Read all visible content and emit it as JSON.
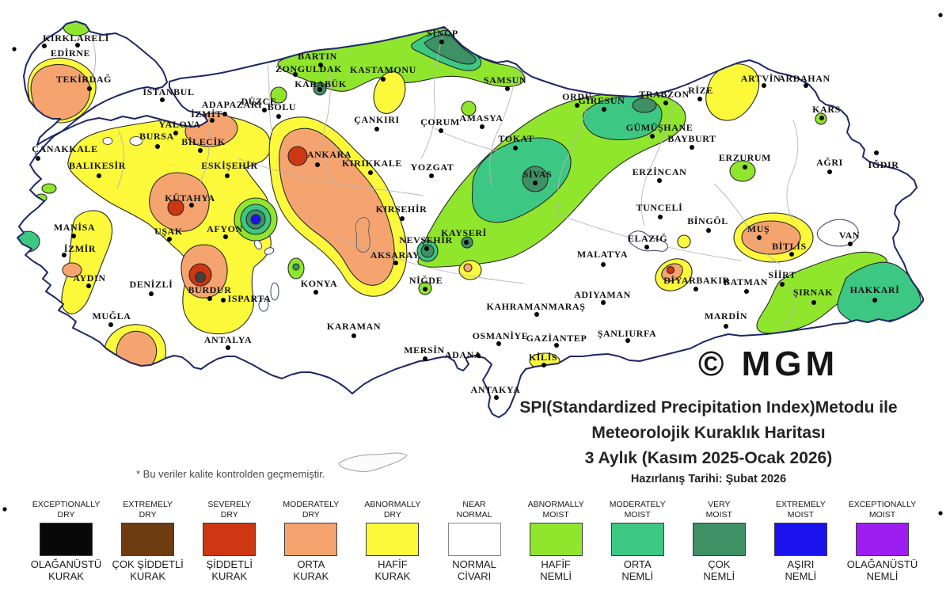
{
  "title": {
    "line1": "SPI(Standardized Precipitation Index)Metodu ile",
    "line2": "Meteorolojik Kuraklık Haritası",
    "line3": "3 Aylık (Kasım 2025-Ocak 2026)",
    "date_line": "Hazırlanış Tarihi: Şubat 2026"
  },
  "footnote": "* Bu veriler kalite kontrolden geçmemiştir.",
  "watermark": "© MGM",
  "palette": {
    "exceptionally_dry": "#080808",
    "extremely_dry": "#6f3b11",
    "severely_dry": "#cd3712",
    "moderately_dry": "#f5a46f",
    "abnormally_dry": "#fbf93a",
    "near_normal": "#ffffff",
    "abnormally_moist": "#8fe62c",
    "moderately_moist": "#3cc882",
    "very_moist": "#3e9065",
    "extremely_moist": "#1b13ee",
    "exceptionally_moist": "#9d1ef0",
    "dark_core": "#46403a"
  },
  "legend": [
    {
      "key": "exceptionally_dry",
      "en": [
        "EXCEPTIONALLY",
        "DRY"
      ],
      "tr": [
        "OLAĞANÜSTÜ",
        "KURAK"
      ],
      "color": "#080808"
    },
    {
      "key": "extremely_dry",
      "en": [
        "EXTREMELY",
        "DRY"
      ],
      "tr": [
        "ÇOK ŞİDDETLİ",
        "KURAK"
      ],
      "color": "#6f3b11"
    },
    {
      "key": "severely_dry",
      "en": [
        "SEVERELY",
        "DRY"
      ],
      "tr": [
        "ŞİDDETLİ",
        "KURAK"
      ],
      "color": "#cd3712"
    },
    {
      "key": "moderately_dry",
      "en": [
        "MODERATELY",
        "DRY"
      ],
      "tr": [
        "ORTA",
        "KURAK"
      ],
      "color": "#f5a46f"
    },
    {
      "key": "abnormally_dry",
      "en": [
        "ABNORMALLY",
        "DRY"
      ],
      "tr": [
        "HAFİF",
        "KURAK"
      ],
      "color": "#fbf93a"
    },
    {
      "key": "near_normal",
      "en": [
        "NEAR",
        "NORMAL"
      ],
      "tr": [
        "NORMAL",
        "CİVARI"
      ],
      "color": "#ffffff"
    },
    {
      "key": "abnormally_moist",
      "en": [
        "ABNORMALLY",
        "MOIST"
      ],
      "tr": [
        "HAFİF",
        "NEMLİ"
      ],
      "color": "#8fe62c"
    },
    {
      "key": "moderately_moist",
      "en": [
        "MODERATELY",
        "MOIST"
      ],
      "tr": [
        "ORTA",
        "NEMLİ"
      ],
      "color": "#3cc882"
    },
    {
      "key": "very_moist",
      "en": [
        "VERY",
        "MOIST"
      ],
      "tr": [
        "ÇOK",
        "NEMLİ"
      ],
      "color": "#3e9065"
    },
    {
      "key": "extremely_moist",
      "en": [
        "EXTREMELY",
        "MOIST"
      ],
      "tr": [
        "AŞIRI",
        "NEMLİ"
      ],
      "color": "#1b13ee"
    },
    {
      "key": "exceptionally_moist",
      "en": [
        "EXCEPTIONALLY",
        "MOIST"
      ],
      "tr": [
        "OLAĞANÜSTÜ",
        "NEMLİ"
      ],
      "color": "#9d1ef0"
    }
  ],
  "cities": [
    {
      "name": "KIRKLARELİ",
      "label": [
        96,
        48
      ],
      "dot": [
        98,
        57
      ]
    },
    {
      "name": "EDİRNE",
      "label": [
        89,
        67
      ],
      "dot": [
        56,
        58
      ]
    },
    {
      "name": "TEKİRDAĞ",
      "label": [
        106,
        100
      ],
      "dot": [
        113,
        112
      ]
    },
    {
      "name": "İSTANBUL",
      "label": [
        213,
        116
      ],
      "dot": [
        205,
        126
      ]
    },
    {
      "name": "ÇANAKKALE",
      "label": [
        82,
        188
      ],
      "dot": [
        48,
        200
      ]
    },
    {
      "name": "YALOVA",
      "label": [
        227,
        157
      ],
      "dot": [
        222,
        168
      ]
    },
    {
      "name": "İZMİT",
      "label": [
        261,
        144
      ],
      "dot": [
        268,
        152
      ]
    },
    {
      "name": "ADAPAZARI",
      "label": [
        293,
        132
      ],
      "dot": [
        284,
        144
      ]
    },
    {
      "name": "BURSA",
      "label": [
        198,
        172
      ],
      "dot": [
        199,
        185
      ]
    },
    {
      "name": "BİLECİK",
      "label": [
        257,
        179
      ],
      "dot": [
        253,
        190
      ]
    },
    {
      "name": "BALIKESİR",
      "label": [
        123,
        209
      ],
      "dot": [
        125,
        222
      ]
    },
    {
      "name": "ESKİŞEHİR",
      "label": [
        290,
        209
      ],
      "dot": [
        287,
        222
      ]
    },
    {
      "name": "BOLU",
      "label": [
        356,
        135
      ],
      "dot": [
        352,
        147
      ]
    },
    {
      "name": "DÜZCE",
      "label": [
        327,
        128
      ],
      "dot": [
        334,
        139
      ]
    },
    {
      "name": "ZONGULDAK",
      "label": [
        390,
        87
      ],
      "dot": [
        373,
        94
      ]
    },
    {
      "name": "BARTIN",
      "label": [
        401,
        71
      ],
      "dot": [
        405,
        82
      ]
    },
    {
      "name": "KARABÜK",
      "label": [
        405,
        106
      ],
      "dot": [
        404,
        113
      ]
    },
    {
      "name": "KASTAMONU",
      "label": [
        484,
        88
      ],
      "dot": [
        484,
        100
      ]
    },
    {
      "name": "SİNOP",
      "label": [
        559,
        42
      ],
      "dot": [
        558,
        53
      ]
    },
    {
      "name": "SAMSUN",
      "label": [
        638,
        101
      ],
      "dot": [
        641,
        112
      ]
    },
    {
      "name": "ÇANKIRI",
      "label": [
        476,
        151
      ],
      "dot": [
        476,
        163
      ]
    },
    {
      "name": "ÇORUM",
      "label": [
        556,
        154
      ],
      "dot": [
        557,
        165
      ]
    },
    {
      "name": "AMASYA",
      "label": [
        608,
        149
      ],
      "dot": [
        609,
        160
      ]
    },
    {
      "name": "TOKAT",
      "label": [
        652,
        175
      ],
      "dot": [
        651,
        187
      ]
    },
    {
      "name": "ORDU",
      "label": [
        729,
        122
      ],
      "dot": [
        729,
        133
      ]
    },
    {
      "name": "GİRESUN",
      "label": [
        760,
        127
      ],
      "dot": [
        763,
        138
      ]
    },
    {
      "name": "TRABZON",
      "label": [
        839,
        119
      ],
      "dot": [
        841,
        130
      ]
    },
    {
      "name": "RİZE",
      "label": [
        885,
        114
      ],
      "dot": [
        884,
        125
      ]
    },
    {
      "name": "ARTVİN",
      "label": [
        961,
        99
      ],
      "dot": [
        965,
        108
      ]
    },
    {
      "name": "ARDAHAN",
      "label": [
        1016,
        99
      ],
      "dot": [
        1018,
        108
      ]
    },
    {
      "name": "KARS",
      "label": [
        1044,
        138
      ],
      "dot": [
        1038,
        149
      ]
    },
    {
      "name": "GÜMÜŞHANE",
      "label": [
        833,
        161
      ],
      "dot": [
        824,
        172
      ]
    },
    {
      "name": "BAYBURT",
      "label": [
        874,
        175
      ],
      "dot": [
        874,
        186
      ]
    },
    {
      "name": "ERZİNCAN",
      "label": [
        833,
        217
      ],
      "dot": [
        833,
        228
      ]
    },
    {
      "name": "ERZURUM",
      "label": [
        941,
        199
      ],
      "dot": [
        941,
        211
      ]
    },
    {
      "name": "AĞRI",
      "label": [
        1048,
        205
      ],
      "dot": [
        1048,
        217
      ]
    },
    {
      "name": "IĞDIR",
      "label": [
        1116,
        208
      ],
      "dot": [
        1107,
        193
      ]
    },
    {
      "name": "ANKARA",
      "label": [
        416,
        195
      ],
      "dot": [
        401,
        208
      ]
    },
    {
      "name": "KIRIKKALE",
      "label": [
        470,
        206
      ],
      "dot": [
        468,
        218
      ]
    },
    {
      "name": "YOZGAT",
      "label": [
        546,
        211
      ],
      "dot": [
        545,
        222
      ]
    },
    {
      "name": "SİVAS",
      "label": [
        679,
        220
      ],
      "dot": [
        676,
        231
      ]
    },
    {
      "name": "KIRŞEHİR",
      "label": [
        507,
        264
      ],
      "dot": [
        508,
        276
      ]
    },
    {
      "name": "NEVŞEHİR",
      "label": [
        538,
        303
      ],
      "dot": [
        539,
        314
      ]
    },
    {
      "name": "KAYSERİ",
      "label": [
        586,
        294
      ],
      "dot": [
        589,
        306
      ]
    },
    {
      "name": "AKSARAY",
      "label": [
        499,
        322
      ],
      "dot": [
        500,
        332
      ]
    },
    {
      "name": "NİĞDE",
      "label": [
        538,
        354
      ],
      "dot": [
        537,
        365
      ]
    },
    {
      "name": "KONYA",
      "label": [
        403,
        358
      ],
      "dot": [
        399,
        369
      ]
    },
    {
      "name": "KARAMAN",
      "label": [
        447,
        412
      ],
      "dot": [
        447,
        424
      ]
    },
    {
      "name": "KÜTAHYA",
      "label": [
        240,
        250
      ],
      "dot": [
        242,
        259
      ]
    },
    {
      "name": "AFYON",
      "label": [
        284,
        289
      ],
      "dot": [
        285,
        299
      ]
    },
    {
      "name": "UŞAK",
      "label": [
        213,
        292
      ],
      "dot": [
        214,
        302
      ]
    },
    {
      "name": "MANİSA",
      "label": [
        94,
        287
      ],
      "dot": [
        93,
        298
      ]
    },
    {
      "name": "İZMİR",
      "label": [
        101,
        314
      ],
      "dot": [
        81,
        322
      ]
    },
    {
      "name": "AYDIN",
      "label": [
        113,
        351
      ],
      "dot": [
        112,
        361
      ]
    },
    {
      "name": "DENİZLİ",
      "label": [
        191,
        359
      ],
      "dot": [
        191,
        371
      ]
    },
    {
      "name": "BURDUR",
      "label": [
        265,
        366
      ],
      "dot": [
        265,
        377
      ]
    },
    {
      "name": "ISPARTA",
      "label": [
        315,
        377
      ],
      "dot": [
        282,
        379
      ]
    },
    {
      "name": "MUĞLA",
      "label": [
        141,
        399
      ],
      "dot": [
        140,
        410
      ]
    },
    {
      "name": "ANTALYA",
      "label": [
        288,
        429
      ],
      "dot": [
        288,
        439
      ]
    },
    {
      "name": "MERSİN",
      "label": [
        536,
        442
      ],
      "dot": [
        537,
        453
      ]
    },
    {
      "name": "ADANA",
      "label": [
        585,
        448
      ],
      "dot": [
        604,
        449
      ]
    },
    {
      "name": "OSMANİYE",
      "label": [
        632,
        424
      ],
      "dot": [
        630,
        434
      ]
    },
    {
      "name": "GAZİANTEP",
      "label": [
        703,
        427
      ],
      "dot": [
        703,
        436
      ]
    },
    {
      "name": "KİLİS",
      "label": [
        686,
        451
      ],
      "dot": [
        687,
        461
      ]
    },
    {
      "name": "KAHRAMANMARAŞ",
      "label": [
        677,
        387
      ],
      "dot": [
        678,
        397
      ]
    },
    {
      "name": "ŞANLIURFA",
      "label": [
        792,
        421
      ],
      "dot": [
        793,
        430
      ]
    },
    {
      "name": "ADIYAMAN",
      "label": [
        761,
        372
      ],
      "dot": [
        762,
        382
      ]
    },
    {
      "name": "MALATYA",
      "label": [
        761,
        321
      ],
      "dot": [
        762,
        334
      ]
    },
    {
      "name": "ANTAKYA",
      "label": [
        626,
        492
      ],
      "dot": [
        627,
        502
      ]
    },
    {
      "name": "TUNCELİ",
      "label": [
        833,
        262
      ],
      "dot": [
        834,
        274
      ]
    },
    {
      "name": "BİNGÖL",
      "label": [
        894,
        279
      ],
      "dot": [
        895,
        291
      ]
    },
    {
      "name": "ELAZIĞ",
      "label": [
        818,
        301
      ],
      "dot": [
        817,
        312
      ]
    },
    {
      "name": "MUŞ",
      "label": [
        958,
        289
      ],
      "dot": [
        959,
        300
      ]
    },
    {
      "name": "BİTLİS",
      "label": [
        997,
        311
      ],
      "dot": [
        1000,
        321
      ]
    },
    {
      "name": "VAN",
      "label": [
        1073,
        297
      ],
      "dot": [
        1074,
        308
      ]
    },
    {
      "name": "SİİRT",
      "label": [
        988,
        347
      ],
      "dot": [
        988,
        359
      ]
    },
    {
      "name": "ŞIRNAK",
      "label": [
        1027,
        369
      ],
      "dot": [
        1028,
        382
      ]
    },
    {
      "name": "HAKKARİ",
      "label": [
        1105,
        366
      ],
      "dot": [
        1105,
        379
      ]
    },
    {
      "name": "DİYARBAKIR",
      "label": [
        880,
        354
      ],
      "dot": [
        879,
        365
      ]
    },
    {
      "name": "BATMAN",
      "label": [
        942,
        356
      ],
      "dot": [
        943,
        368
      ]
    },
    {
      "name": "MARDİN",
      "label": [
        917,
        399
      ],
      "dot": [
        917,
        412
      ]
    }
  ]
}
